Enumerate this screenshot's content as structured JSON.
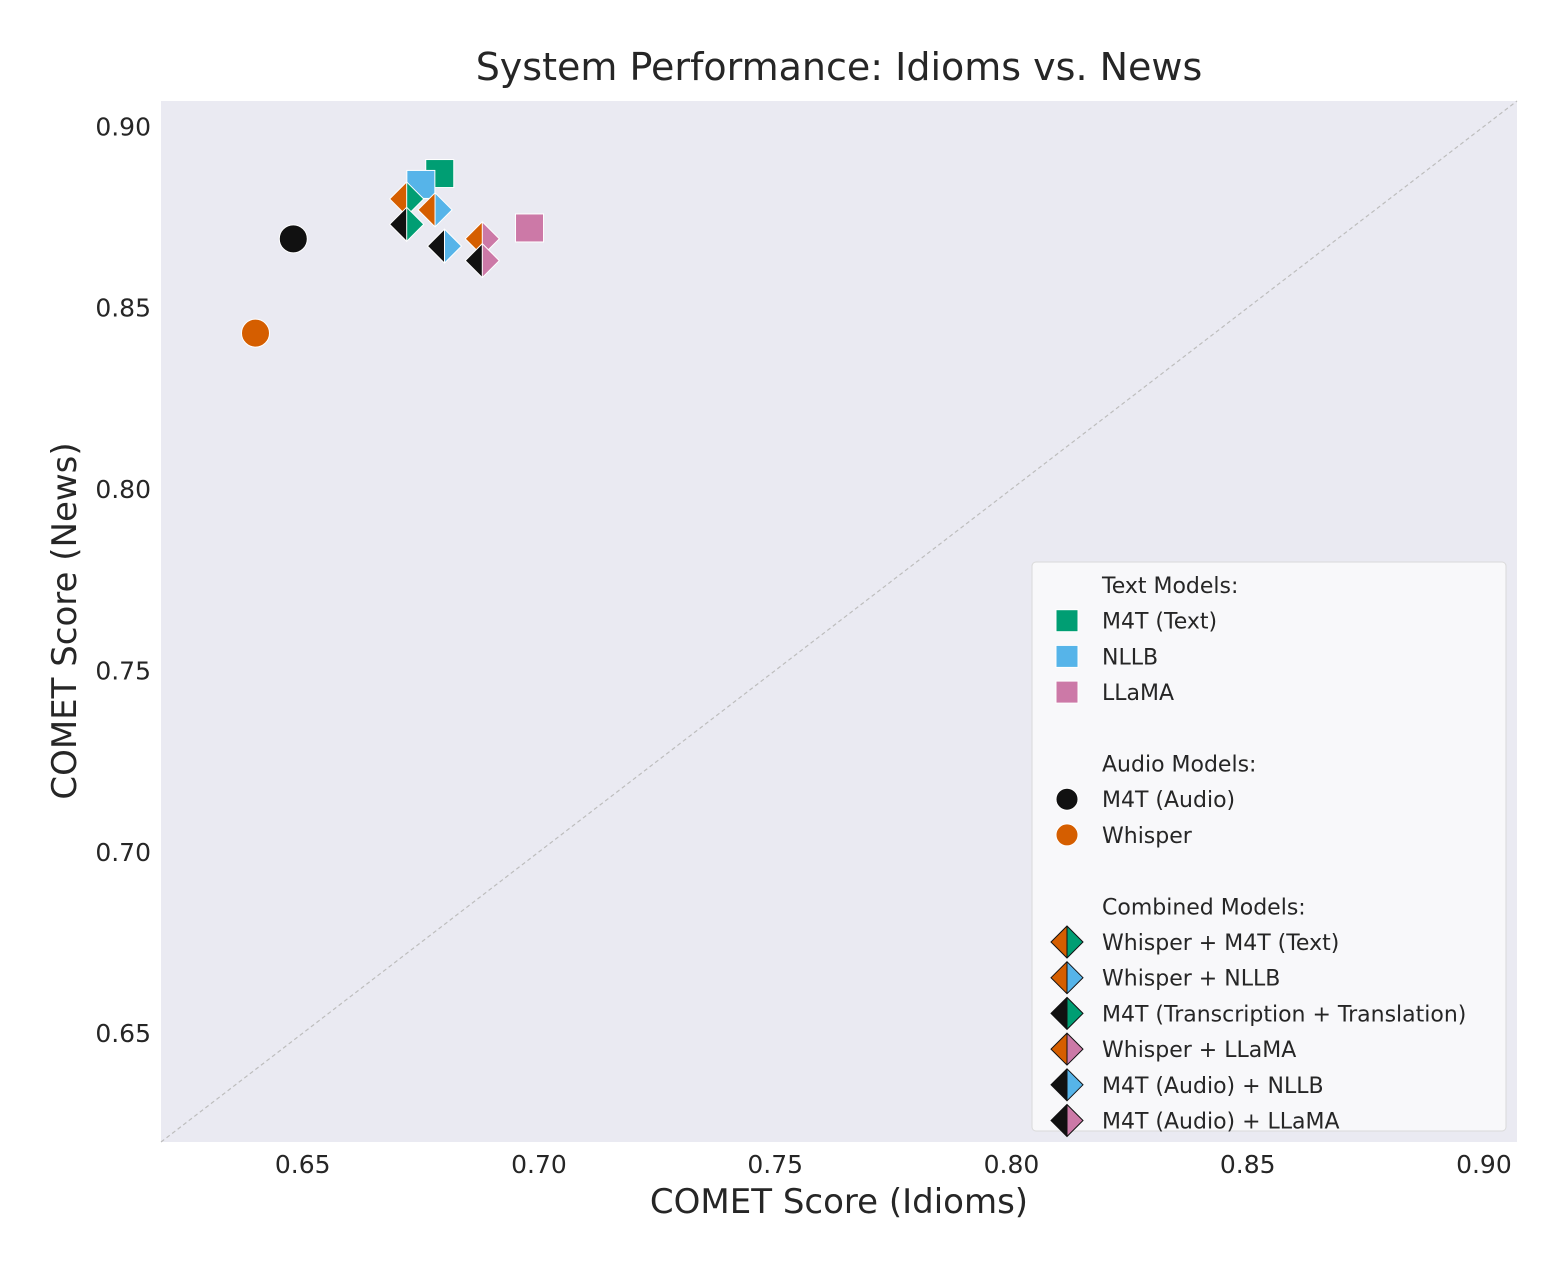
{
  "chart_data": {
    "type": "scatter",
    "title": "System Performance: Idioms vs. News",
    "xlabel": "COMET Score (Idioms)",
    "ylabel": "COMET Score (News)",
    "xlim": [
      0.62,
      0.907
    ],
    "ylim": [
      0.62,
      0.907
    ],
    "xticks": [
      "0.65",
      "0.70",
      "0.75",
      "0.80",
      "0.85",
      "0.90"
    ],
    "yticks": [
      "0.65",
      "0.70",
      "0.75",
      "0.80",
      "0.85",
      "0.90"
    ],
    "grid": false,
    "diagonal_reference_line": true,
    "legend_position": "lower-right",
    "colors": {
      "m4t_text": "#009e73",
      "nllb": "#56b4e9",
      "llama": "#cc79a7",
      "m4t_audio": "#111111",
      "whisper": "#d55e00",
      "plot_bg": "#eaeaf2",
      "legend_bg": "#f8f8fa"
    },
    "legend_groups": [
      {
        "title": "Text Models:",
        "items": [
          {
            "label": "M4T (Text)",
            "marker": "square",
            "colors": [
              "#009e73"
            ]
          },
          {
            "label": "NLLB",
            "marker": "square",
            "colors": [
              "#56b4e9"
            ]
          },
          {
            "label": "LLaMA",
            "marker": "square",
            "colors": [
              "#cc79a7"
            ]
          }
        ]
      },
      {
        "title": "Audio Models:",
        "items": [
          {
            "label": "M4T (Audio)",
            "marker": "circle",
            "colors": [
              "#111111"
            ]
          },
          {
            "label": "Whisper",
            "marker": "circle",
            "colors": [
              "#d55e00"
            ]
          }
        ]
      },
      {
        "title": "Combined Models:",
        "items": [
          {
            "label": "Whisper + M4T (Text)",
            "marker": "diamond",
            "colors": [
              "#d55e00",
              "#009e73"
            ]
          },
          {
            "label": "Whisper + NLLB",
            "marker": "diamond",
            "colors": [
              "#d55e00",
              "#56b4e9"
            ]
          },
          {
            "label": "M4T (Transcription + Translation)",
            "marker": "diamond",
            "colors": [
              "#111111",
              "#009e73"
            ]
          },
          {
            "label": "Whisper + LLaMA",
            "marker": "diamond",
            "colors": [
              "#d55e00",
              "#cc79a7"
            ]
          },
          {
            "label": "M4T (Audio) + NLLB",
            "marker": "diamond",
            "colors": [
              "#111111",
              "#56b4e9"
            ]
          },
          {
            "label": "M4T (Audio) + LLaMA",
            "marker": "diamond",
            "colors": [
              "#111111",
              "#cc79a7"
            ]
          }
        ]
      }
    ],
    "points": [
      {
        "system": "M4T (Text)",
        "marker": "square",
        "colors": [
          "#009e73"
        ],
        "x": 0.679,
        "y": 0.887
      },
      {
        "system": "NLLB",
        "marker": "square",
        "colors": [
          "#56b4e9"
        ],
        "x": 0.675,
        "y": 0.884
      },
      {
        "system": "LLaMA",
        "marker": "square",
        "colors": [
          "#cc79a7"
        ],
        "x": 0.698,
        "y": 0.872
      },
      {
        "system": "M4T (Audio)",
        "marker": "circle",
        "colors": [
          "#111111"
        ],
        "x": 0.648,
        "y": 0.869
      },
      {
        "system": "Whisper",
        "marker": "circle",
        "colors": [
          "#d55e00"
        ],
        "x": 0.64,
        "y": 0.843
      },
      {
        "system": "Whisper + M4T (Text)",
        "marker": "diamond",
        "colors": [
          "#d55e00",
          "#009e73"
        ],
        "x": 0.672,
        "y": 0.88
      },
      {
        "system": "Whisper + NLLB",
        "marker": "diamond",
        "colors": [
          "#d55e00",
          "#56b4e9"
        ],
        "x": 0.678,
        "y": 0.877
      },
      {
        "system": "M4T (Transcription + Translation)",
        "marker": "diamond",
        "colors": [
          "#111111",
          "#009e73"
        ],
        "x": 0.672,
        "y": 0.873
      },
      {
        "system": "Whisper + LLaMA",
        "marker": "diamond",
        "colors": [
          "#d55e00",
          "#cc79a7"
        ],
        "x": 0.688,
        "y": 0.869
      },
      {
        "system": "M4T (Audio) + NLLB",
        "marker": "diamond",
        "colors": [
          "#111111",
          "#56b4e9"
        ],
        "x": 0.68,
        "y": 0.867
      },
      {
        "system": "M4T (Audio) + LLaMA",
        "marker": "diamond",
        "colors": [
          "#111111",
          "#cc79a7"
        ],
        "x": 0.688,
        "y": 0.863
      }
    ]
  }
}
